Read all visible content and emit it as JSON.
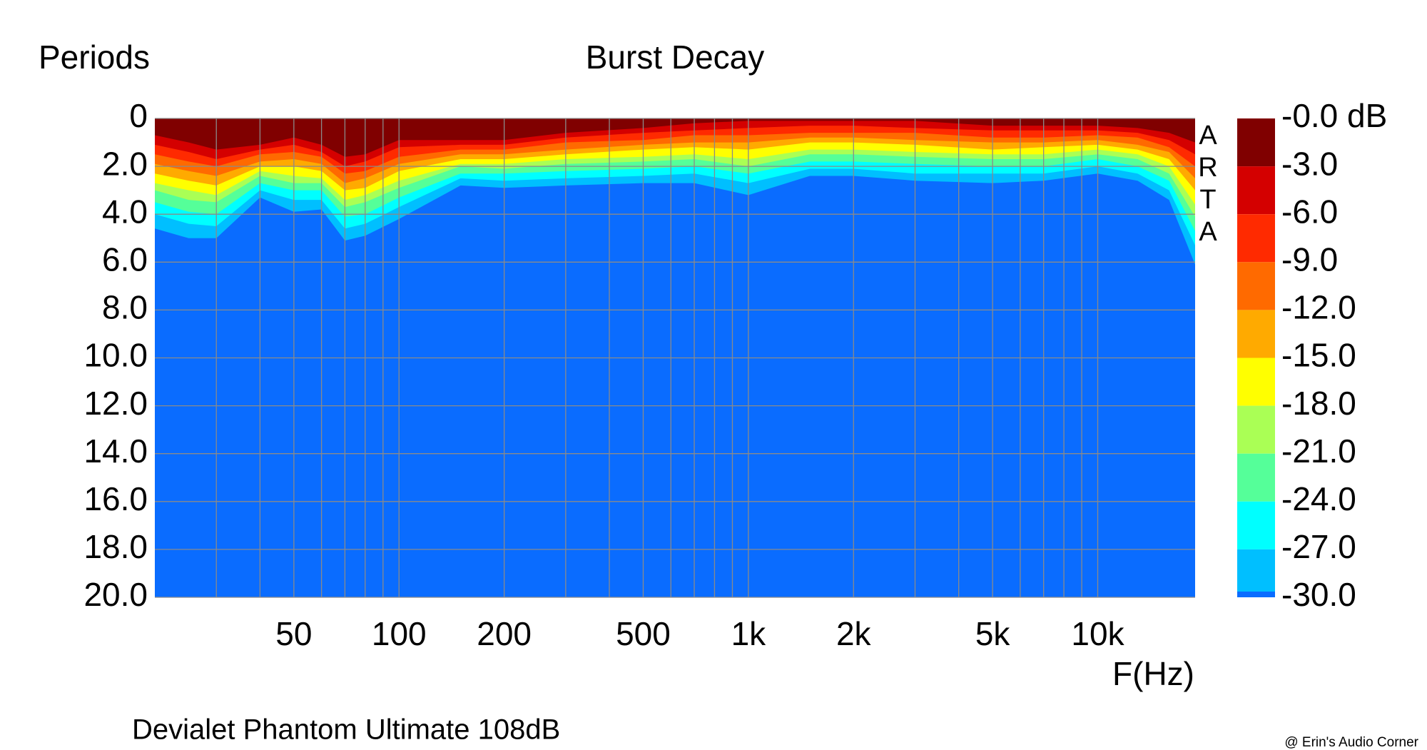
{
  "chart_data": {
    "type": "burst-decay",
    "title": "Burst Decay",
    "y_label": "Periods",
    "x_label": "F(Hz)",
    "subtitle": "Devialet Phantom Ultimate 108dB",
    "software": "ARTA",
    "credit": "@ Erin's Audio Corner",
    "log_x": true,
    "grid": true,
    "xlim": [
      20,
      19000
    ],
    "ylim": [
      0,
      20
    ],
    "xticks": [
      50,
      100,
      200,
      500,
      {
        "value": 1000,
        "label": "1k"
      },
      {
        "value": 2000,
        "label": "2k"
      },
      {
        "value": 5000,
        "label": "5k"
      },
      {
        "value": 10000,
        "label": "10k"
      }
    ],
    "xgrid": [
      30,
      40,
      50,
      60,
      70,
      80,
      90,
      100,
      200,
      300,
      400,
      500,
      600,
      700,
      800,
      900,
      1000,
      2000,
      3000,
      4000,
      5000,
      6000,
      7000,
      8000,
      9000,
      10000
    ],
    "yticks": [
      0,
      {
        "value": 2,
        "label": "2.0"
      },
      {
        "value": 4,
        "label": "4.0"
      },
      {
        "value": 6,
        "label": "6.0"
      },
      {
        "value": 8,
        "label": "8.0"
      },
      {
        "value": 10,
        "label": "10.0"
      },
      {
        "value": 12,
        "label": "12.0"
      },
      {
        "value": 14,
        "label": "14.0"
      },
      {
        "value": 16,
        "label": "16.0"
      },
      {
        "value": 18,
        "label": "18.0"
      },
      {
        "value": 20,
        "label": "20.0"
      }
    ],
    "colorbar": {
      "ticks": [
        {
          "value": 0,
          "label": "-0.0 dB"
        },
        {
          "value": -3,
          "label": "-3.0"
        },
        {
          "value": -6,
          "label": "-6.0"
        },
        {
          "value": -9,
          "label": "-9.0"
        },
        {
          "value": -12,
          "label": "-12.0"
        },
        {
          "value": -15,
          "label": "-15.0"
        },
        {
          "value": -18,
          "label": "-18.0"
        },
        {
          "value": -21,
          "label": "-21.0"
        },
        {
          "value": -24,
          "label": "-24.0"
        },
        {
          "value": -27,
          "label": "-27.0"
        },
        {
          "value": -30,
          "label": "-30.0"
        }
      ],
      "colors": [
        "#800000",
        "#d40000",
        "#ff2a00",
        "#ff6a00",
        "#ffaa00",
        "#ffff00",
        "#aaff55",
        "#55ff99",
        "#00ffff",
        "#00bfff",
        "#0a6cff"
      ]
    },
    "x": [
      20,
      25,
      30,
      40,
      50,
      60,
      70,
      80,
      100,
      150,
      200,
      300,
      500,
      700,
      1000,
      1500,
      2000,
      3000,
      5000,
      7000,
      10000,
      13000,
      16000,
      19000
    ],
    "contours": [
      [
        0.7,
        1.0,
        1.3,
        1.1,
        0.8,
        1.1,
        1.6,
        1.5,
        0.9,
        0.9,
        0.9,
        0.6,
        0.4,
        0.2,
        0.1,
        0.1,
        0.1,
        0.1,
        0.3,
        0.3,
        0.3,
        0.4,
        0.6,
        1.0
      ],
      [
        1.1,
        1.4,
        1.7,
        1.3,
        1.1,
        1.4,
        2.0,
        1.8,
        1.2,
        1.1,
        1.1,
        0.8,
        0.6,
        0.5,
        0.4,
        0.3,
        0.3,
        0.4,
        0.5,
        0.5,
        0.5,
        0.6,
        0.9,
        1.5
      ],
      [
        1.5,
        1.8,
        2.0,
        1.5,
        1.4,
        1.6,
        2.3,
        2.2,
        1.6,
        1.3,
        1.3,
        1.0,
        0.9,
        0.7,
        0.7,
        0.6,
        0.6,
        0.6,
        0.8,
        0.8,
        0.7,
        0.8,
        1.2,
        2.0
      ],
      [
        1.9,
        2.2,
        2.4,
        1.8,
        1.7,
        1.9,
        2.7,
        2.5,
        1.9,
        1.5,
        1.5,
        1.3,
        1.1,
        1.0,
        1.0,
        0.8,
        0.8,
        0.9,
        1.0,
        1.0,
        0.9,
        1.1,
        1.4,
        2.5
      ],
      [
        2.3,
        2.6,
        2.8,
        2.0,
        2.0,
        2.2,
        3.0,
        2.9,
        2.2,
        1.7,
        1.7,
        1.5,
        1.3,
        1.2,
        1.3,
        1.0,
        1.0,
        1.1,
        1.3,
        1.2,
        1.1,
        1.3,
        1.7,
        3.0
      ],
      [
        2.7,
        3.0,
        3.2,
        2.2,
        2.4,
        2.5,
        3.4,
        3.2,
        2.6,
        1.9,
        1.9,
        1.7,
        1.6,
        1.5,
        1.7,
        1.3,
        1.3,
        1.4,
        1.5,
        1.5,
        1.3,
        1.5,
        2.0,
        3.6
      ],
      [
        3.0,
        3.4,
        3.5,
        2.4,
        2.7,
        2.7,
        3.7,
        3.5,
        2.9,
        2.0,
        2.1,
        1.9,
        1.8,
        1.7,
        2.0,
        1.5,
        1.5,
        1.6,
        1.7,
        1.7,
        1.5,
        1.7,
        2.3,
        4.1
      ],
      [
        3.5,
        3.9,
        4.0,
        2.7,
        3.0,
        3.0,
        4.1,
        4.0,
        3.3,
        2.3,
        2.3,
        2.2,
        2.1,
        2.0,
        2.3,
        1.8,
        1.8,
        1.9,
        2.0,
        2.0,
        1.7,
        2.0,
        2.6,
        4.7
      ],
      [
        4.0,
        4.4,
        4.5,
        3.0,
        3.4,
        3.4,
        4.6,
        4.4,
        3.7,
        2.5,
        2.6,
        2.5,
        2.4,
        2.3,
        2.7,
        2.1,
        2.1,
        2.3,
        2.3,
        2.3,
        2.0,
        2.3,
        3.0,
        5.3
      ],
      [
        4.6,
        5.0,
        5.0,
        3.3,
        3.9,
        3.8,
        5.1,
        4.9,
        4.2,
        2.8,
        2.9,
        2.8,
        2.7,
        2.7,
        3.2,
        2.4,
        2.4,
        2.6,
        2.7,
        2.6,
        2.3,
        2.6,
        3.4,
        6.1
      ]
    ]
  }
}
